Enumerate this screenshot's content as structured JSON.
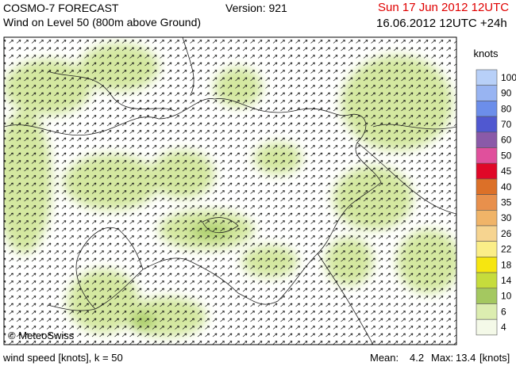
{
  "header": {
    "title": "COSMO-7 FORECAST",
    "version": "Version: 921",
    "valid_time": "Sun 17 Jun 2012 12UTC",
    "subtitle": "Wind on Level 50 (800m above Ground)",
    "run_time": "16.06.2012 12UTC +24h"
  },
  "map": {
    "credit": "© MeteoSwiss"
  },
  "legend": {
    "unit": "knots",
    "levels": [
      {
        "label": 100,
        "color": "#b8d0f8"
      },
      {
        "label": 90,
        "color": "#98b4f2"
      },
      {
        "label": 80,
        "color": "#6c8eea"
      },
      {
        "label": 70,
        "color": "#5058d0"
      },
      {
        "label": 60,
        "color": "#8a5aa8"
      },
      {
        "label": 50,
        "color": "#e0509c"
      },
      {
        "label": 45,
        "color": "#e00828"
      },
      {
        "label": 40,
        "color": "#dc7028"
      },
      {
        "label": 35,
        "color": "#e8904c"
      },
      {
        "label": 30,
        "color": "#f0b468"
      },
      {
        "label": 26,
        "color": "#f6d490"
      },
      {
        "label": 22,
        "color": "#fbee88"
      },
      {
        "label": 18,
        "color": "#f6e610"
      },
      {
        "label": 14,
        "color": "#c6dc3c"
      },
      {
        "label": 10,
        "color": "#a4c860"
      },
      {
        "label": 6,
        "color": "#dcedb0"
      },
      {
        "label": 4,
        "color": "#f4f9e8"
      }
    ]
  },
  "footer": {
    "caption": "wind speed [knots], k = 50",
    "mean_label": "Mean:",
    "mean": 4.2,
    "max_label": "Max:",
    "max": 13.4,
    "unit": "[knots]"
  }
}
